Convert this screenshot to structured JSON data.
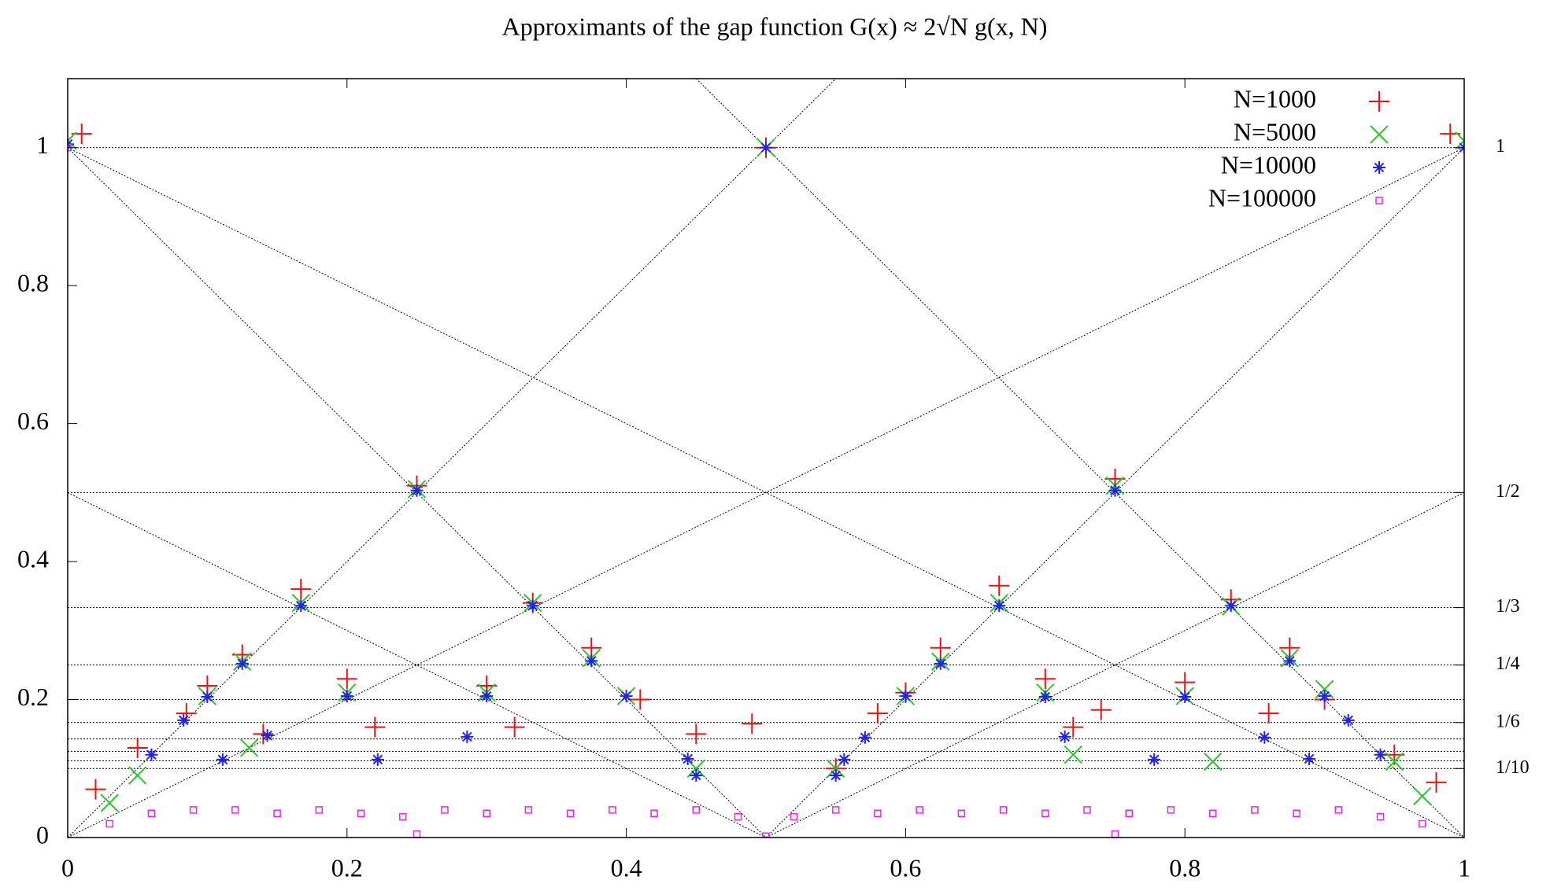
{
  "chart_data": {
    "type": "scatter",
    "title": "Approximants of the gap function G(x) ≈ 2√N g(x, N)",
    "xlim": [
      0,
      1
    ],
    "ylim": [
      0,
      1.1
    ],
    "xticks": [
      0,
      0.2,
      0.4,
      0.6,
      0.8,
      1
    ],
    "yticks": [
      0,
      0.2,
      0.4,
      0.6,
      0.8,
      1
    ],
    "y2ticks": [
      {
        "value": 1,
        "label": "1"
      },
      {
        "value": 0.5,
        "label": "1/2"
      },
      {
        "value": 0.3333,
        "label": "1/3"
      },
      {
        "value": 0.25,
        "label": "1/4"
      },
      {
        "value": 0.1667,
        "label": "1/6"
      },
      {
        "value": 0.1,
        "label": "1/10"
      }
    ],
    "hlines": [
      1,
      0.5,
      0.3333,
      0.25,
      0.2,
      0.1667,
      0.1429,
      0.125,
      0.1111,
      0.1
    ],
    "guide_lines": [
      [
        0,
        0,
        1,
        1
      ],
      [
        0,
        1,
        1,
        0
      ],
      [
        0,
        0,
        0.55,
        1.1
      ],
      [
        0.45,
        1.1,
        1,
        0
      ],
      [
        0,
        1,
        0.5,
        0
      ],
      [
        0.5,
        0,
        1,
        1
      ],
      [
        0,
        0.5,
        0.5,
        0
      ],
      [
        0.5,
        0,
        1,
        0.5
      ]
    ],
    "legend": "upper right",
    "series": [
      {
        "name": "N=1000",
        "color": "#ee1111",
        "marker": "plus",
        "x": [
          0.01,
          0.5,
          0.99,
          0.25,
          0.75,
          0.167,
          0.333,
          0.667,
          0.833,
          0.125,
          0.375,
          0.625,
          0.875,
          0.1,
          0.2,
          0.3,
          0.7,
          0.8,
          0.74,
          0.49,
          0.86,
          0.085,
          0.14,
          0.22,
          0.41,
          0.45,
          0.58,
          0.6,
          0.72,
          0.9,
          0.95,
          0.05,
          0.55,
          0.32,
          0.02,
          0.98
        ],
        "values": [
          1.02,
          1.0,
          1.02,
          0.51,
          0.52,
          0.36,
          0.34,
          0.365,
          0.345,
          0.265,
          0.275,
          0.275,
          0.275,
          0.22,
          0.23,
          0.22,
          0.23,
          0.225,
          0.185,
          0.165,
          0.18,
          0.18,
          0.15,
          0.16,
          0.2,
          0.15,
          0.18,
          0.21,
          0.16,
          0.2,
          0.12,
          0.13,
          0.1,
          0.16,
          0.07,
          0.08
        ]
      },
      {
        "name": "N=5000",
        "color": "#22cc22",
        "marker": "cross",
        "x": [
          0.0,
          0.5,
          1.0,
          0.25,
          0.75,
          0.167,
          0.333,
          0.667,
          0.833,
          0.125,
          0.375,
          0.625,
          0.875,
          0.1,
          0.2,
          0.3,
          0.7,
          0.8,
          0.9,
          0.4,
          0.6,
          0.13,
          0.82,
          0.72,
          0.05,
          0.45,
          0.55,
          0.95,
          0.03,
          0.97
        ],
        "values": [
          1.01,
          1.0,
          1.01,
          0.505,
          0.51,
          0.34,
          0.34,
          0.34,
          0.335,
          0.255,
          0.26,
          0.255,
          0.26,
          0.205,
          0.21,
          0.21,
          0.21,
          0.205,
          0.215,
          0.205,
          0.205,
          0.13,
          0.11,
          0.12,
          0.09,
          0.1,
          0.1,
          0.11,
          0.05,
          0.06
        ]
      },
      {
        "name": "N=10000",
        "color": "#2222ee",
        "marker": "star",
        "x": [
          0.0,
          0.5,
          1.0,
          0.25,
          0.75,
          0.167,
          0.333,
          0.667,
          0.833,
          0.125,
          0.375,
          0.625,
          0.875,
          0.1,
          0.2,
          0.3,
          0.7,
          0.8,
          0.9,
          0.4,
          0.6,
          0.143,
          0.286,
          0.571,
          0.714,
          0.857,
          0.111,
          0.222,
          0.444,
          0.556,
          0.778,
          0.889,
          0.083,
          0.917,
          0.06,
          0.94,
          0.45,
          0.55
        ],
        "values": [
          1.005,
          1.0,
          1.0,
          0.503,
          0.503,
          0.336,
          0.336,
          0.336,
          0.336,
          0.252,
          0.256,
          0.252,
          0.256,
          0.204,
          0.205,
          0.205,
          0.204,
          0.204,
          0.205,
          0.205,
          0.205,
          0.148,
          0.146,
          0.145,
          0.146,
          0.145,
          0.113,
          0.113,
          0.114,
          0.113,
          0.113,
          0.114,
          0.17,
          0.17,
          0.12,
          0.12,
          0.09,
          0.09
        ]
      },
      {
        "name": "N=100000",
        "color": "#ee22ee",
        "marker": "square",
        "x": [
          0.0,
          0.03,
          0.06,
          0.09,
          0.12,
          0.15,
          0.18,
          0.21,
          0.24,
          0.27,
          0.3,
          0.33,
          0.36,
          0.39,
          0.42,
          0.45,
          0.48,
          0.52,
          0.55,
          0.58,
          0.61,
          0.64,
          0.67,
          0.7,
          0.73,
          0.76,
          0.79,
          0.82,
          0.85,
          0.88,
          0.91,
          0.94,
          0.97,
          0.25,
          0.75,
          0.5
        ],
        "values": [
          1.0,
          0.02,
          0.035,
          0.04,
          0.04,
          0.035,
          0.04,
          0.035,
          0.03,
          0.04,
          0.035,
          0.04,
          0.035,
          0.04,
          0.035,
          0.04,
          0.03,
          0.03,
          0.04,
          0.035,
          0.04,
          0.035,
          0.04,
          0.035,
          0.04,
          0.035,
          0.04,
          0.035,
          0.04,
          0.035,
          0.04,
          0.03,
          0.02,
          0.005,
          0.005,
          0.002
        ]
      }
    ]
  }
}
